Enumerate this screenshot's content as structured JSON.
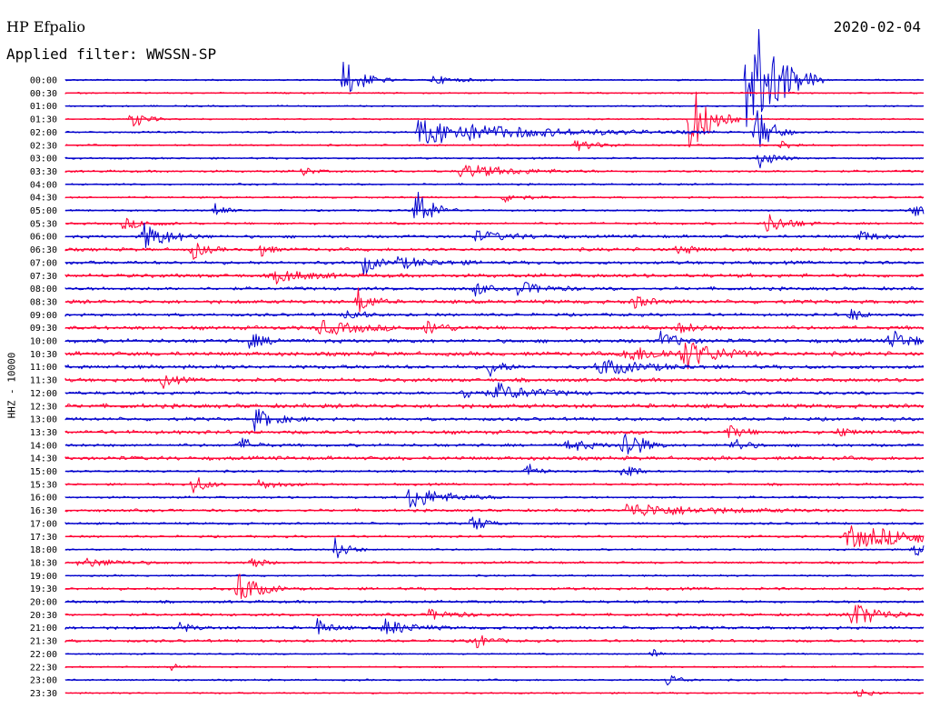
{
  "header": {
    "station": "HP Efpalio",
    "date": "2020-02-04",
    "filter": "Applied filter: WWSSN-SP",
    "channel": "HHZ - 10000"
  },
  "colors": {
    "even_hour": "#0000cc",
    "half_hour": "#ff0033"
  },
  "chart_data": {
    "type": "line",
    "title": "",
    "xlabel": "",
    "ylabel": "HHZ - 10000",
    "y_tick_labels": [
      "00:00",
      "00:30",
      "01:00",
      "01:30",
      "02:00",
      "02:30",
      "03:00",
      "03:30",
      "04:00",
      "04:30",
      "05:00",
      "05:30",
      "06:00",
      "06:30",
      "07:00",
      "07:30",
      "08:00",
      "08:30",
      "09:00",
      "09:30",
      "10:00",
      "10:30",
      "11:00",
      "11:30",
      "12:00",
      "12:30",
      "13:00",
      "13:30",
      "14:00",
      "14:30",
      "15:00",
      "15:30",
      "16:00",
      "16:30",
      "17:00",
      "17:30",
      "18:00",
      "18:30",
      "19:00",
      "19:30",
      "20:00",
      "20:30",
      "21:00",
      "21:30",
      "22:00",
      "22:30",
      "23:00",
      "23:30"
    ],
    "trace_minutes": 30,
    "grid": false,
    "legend": "none",
    "noise_level": [
      1,
      1,
      1,
      1,
      1.2,
      1.2,
      1.2,
      1.5,
      1.2,
      1.2,
      1.2,
      1.5,
      2,
      2.2,
      2.2,
      2.5,
      2.2,
      2.5,
      2,
      2.5,
      2.5,
      2.8,
      2.5,
      2.5,
      2.2,
      2.8,
      2.2,
      2.5,
      2,
      2.5,
      1.5,
      1.5,
      1.5,
      1.8,
      1.5,
      1.5,
      1.2,
      1.5,
      1.2,
      1.8,
      1.8,
      1.8,
      2,
      1.8,
      1,
      1,
      1.2,
      1
    ],
    "events": [
      {
        "trace": 0,
        "t": 9.7,
        "amp": 24,
        "dur": 0.6
      },
      {
        "trace": 0,
        "t": 12.8,
        "amp": 5,
        "dur": 0.8
      },
      {
        "trace": 0,
        "t": 23.8,
        "amp": 90,
        "dur": 0.9
      },
      {
        "trace": 3,
        "t": 2.3,
        "amp": 12,
        "dur": 0.4
      },
      {
        "trace": 3,
        "t": 21.8,
        "amp": 46,
        "dur": 0.6
      },
      {
        "trace": 4,
        "t": 12.3,
        "amp": 14,
        "dur": 3.5
      },
      {
        "trace": 4,
        "t": 24.1,
        "amp": 30,
        "dur": 0.5
      },
      {
        "trace": 5,
        "t": 17.8,
        "amp": 6,
        "dur": 0.8
      },
      {
        "trace": 5,
        "t": 25,
        "amp": 6,
        "dur": 0.4
      },
      {
        "trace": 6,
        "t": 24.2,
        "amp": 12,
        "dur": 0.5
      },
      {
        "trace": 7,
        "t": 13.8,
        "amp": 8,
        "dur": 1.6
      },
      {
        "trace": 7,
        "t": 8.3,
        "amp": 6,
        "dur": 0.3
      },
      {
        "trace": 9,
        "t": 15.3,
        "amp": 6,
        "dur": 0.6
      },
      {
        "trace": 10,
        "t": 12.2,
        "amp": 30,
        "dur": 0.5
      },
      {
        "trace": 10,
        "t": 5.2,
        "amp": 11,
        "dur": 0.3
      },
      {
        "trace": 10,
        "t": 29.6,
        "amp": 7,
        "dur": 0.8
      },
      {
        "trace": 11,
        "t": 24.5,
        "amp": 12,
        "dur": 0.7
      },
      {
        "trace": 11,
        "t": 2,
        "amp": 6,
        "dur": 0.8
      },
      {
        "trace": 12,
        "t": 2.7,
        "amp": 16,
        "dur": 0.8
      },
      {
        "trace": 12,
        "t": 14.3,
        "amp": 6,
        "dur": 1.2
      },
      {
        "trace": 12,
        "t": 27.7,
        "amp": 8,
        "dur": 0.5
      },
      {
        "trace": 13,
        "t": 4.4,
        "amp": 12,
        "dur": 0.4
      },
      {
        "trace": 13,
        "t": 6.7,
        "amp": 12,
        "dur": 0.3
      },
      {
        "trace": 13,
        "t": 21.4,
        "amp": 6,
        "dur": 0.5
      },
      {
        "trace": 14,
        "t": 10.4,
        "amp": 14,
        "dur": 0.4
      },
      {
        "trace": 14,
        "t": 11.6,
        "amp": 6,
        "dur": 1.2
      },
      {
        "trace": 15,
        "t": 7.3,
        "amp": 8,
        "dur": 1
      },
      {
        "trace": 16,
        "t": 15.8,
        "amp": 8,
        "dur": 0.8
      },
      {
        "trace": 16,
        "t": 14.3,
        "amp": 10,
        "dur": 0.3
      },
      {
        "trace": 17,
        "t": 10.2,
        "amp": 16,
        "dur": 0.4
      },
      {
        "trace": 17,
        "t": 19.8,
        "amp": 8,
        "dur": 0.5
      },
      {
        "trace": 18,
        "t": 9.8,
        "amp": 10,
        "dur": 0.4
      },
      {
        "trace": 18,
        "t": 27.4,
        "amp": 8,
        "dur": 0.4
      },
      {
        "trace": 19,
        "t": 8.8,
        "amp": 8,
        "dur": 1.4
      },
      {
        "trace": 19,
        "t": 12.6,
        "amp": 8,
        "dur": 0.6
      },
      {
        "trace": 19,
        "t": 21.4,
        "amp": 6,
        "dur": 0.6
      },
      {
        "trace": 20,
        "t": 20.8,
        "amp": 10,
        "dur": 0.6
      },
      {
        "trace": 20,
        "t": 28.8,
        "amp": 14,
        "dur": 0.6
      },
      {
        "trace": 20,
        "t": 6.4,
        "amp": 8,
        "dur": 0.6
      },
      {
        "trace": 21,
        "t": 19.5,
        "amp": 8,
        "dur": 1.6
      },
      {
        "trace": 21,
        "t": 21.6,
        "amp": 16,
        "dur": 0.9
      },
      {
        "trace": 22,
        "t": 18.6,
        "amp": 10,
        "dur": 1.3
      },
      {
        "trace": 22,
        "t": 14.8,
        "amp": 12,
        "dur": 0.4
      },
      {
        "trace": 23,
        "t": 3.3,
        "amp": 10,
        "dur": 0.4
      },
      {
        "trace": 24,
        "t": 15,
        "amp": 10,
        "dur": 1.2
      },
      {
        "trace": 24,
        "t": 13.9,
        "amp": 8,
        "dur": 0.5
      },
      {
        "trace": 26,
        "t": 6.6,
        "amp": 12,
        "dur": 0.7
      },
      {
        "trace": 27,
        "t": 23.1,
        "amp": 8,
        "dur": 0.5
      },
      {
        "trace": 27,
        "t": 27,
        "amp": 6,
        "dur": 0.4
      },
      {
        "trace": 28,
        "t": 19.5,
        "amp": 24,
        "dur": 0.5
      },
      {
        "trace": 28,
        "t": 17.5,
        "amp": 8,
        "dur": 0.7
      },
      {
        "trace": 28,
        "t": 23.3,
        "amp": 10,
        "dur": 0.4
      },
      {
        "trace": 28,
        "t": 6.1,
        "amp": 10,
        "dur": 0.4
      },
      {
        "trace": 30,
        "t": 19.5,
        "amp": 16,
        "dur": 0.3
      },
      {
        "trace": 30,
        "t": 16.1,
        "amp": 12,
        "dur": 0.3
      },
      {
        "trace": 31,
        "t": 4.4,
        "amp": 14,
        "dur": 0.4
      },
      {
        "trace": 31,
        "t": 6.7,
        "amp": 6,
        "dur": 0.7
      },
      {
        "trace": 32,
        "t": 12,
        "amp": 14,
        "dur": 1.1
      },
      {
        "trace": 33,
        "t": 19.6,
        "amp": 8,
        "dur": 2.4
      },
      {
        "trace": 34,
        "t": 14.2,
        "amp": 12,
        "dur": 0.4
      },
      {
        "trace": 35,
        "t": 27.3,
        "amp": 12,
        "dur": 3.4
      },
      {
        "trace": 36,
        "t": 9.4,
        "amp": 14,
        "dur": 0.4
      },
      {
        "trace": 36,
        "t": 29.6,
        "amp": 8,
        "dur": 1.1
      },
      {
        "trace": 37,
        "t": 0.5,
        "amp": 6,
        "dur": 1.1
      },
      {
        "trace": 37,
        "t": 6.5,
        "amp": 10,
        "dur": 0.3
      },
      {
        "trace": 39,
        "t": 6,
        "amp": 22,
        "dur": 0.6
      },
      {
        "trace": 41,
        "t": 27.4,
        "amp": 16,
        "dur": 0.9
      },
      {
        "trace": 41,
        "t": 12.7,
        "amp": 6,
        "dur": 0.8
      },
      {
        "trace": 42,
        "t": 11.1,
        "amp": 10,
        "dur": 0.8
      },
      {
        "trace": 42,
        "t": 8.8,
        "amp": 10,
        "dur": 0.4
      },
      {
        "trace": 42,
        "t": 4,
        "amp": 6,
        "dur": 0.4
      },
      {
        "trace": 43,
        "t": 14.3,
        "amp": 10,
        "dur": 0.4
      },
      {
        "trace": 44,
        "t": 20.5,
        "amp": 6,
        "dur": 0.3
      },
      {
        "trace": 45,
        "t": 3.7,
        "amp": 6,
        "dur": 0.3
      },
      {
        "trace": 46,
        "t": 21,
        "amp": 8,
        "dur": 0.4
      },
      {
        "trace": 47,
        "t": 27.6,
        "amp": 8,
        "dur": 0.4
      }
    ]
  }
}
